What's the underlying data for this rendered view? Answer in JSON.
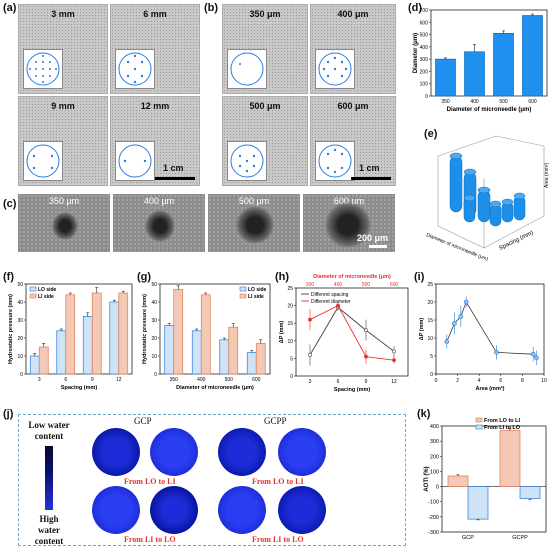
{
  "labels": {
    "a": "(a)",
    "b": "(b)",
    "c": "(c)",
    "d": "(d)",
    "e": "(e)",
    "f": "(f)",
    "g": "(g)",
    "h": "(h)",
    "i": "(i)",
    "j": "(j)",
    "k": "(k)"
  },
  "panel_a": {
    "tiles": [
      "3 mm",
      "6 mm",
      "9 mm",
      "12 mm"
    ],
    "scale": "1 cm"
  },
  "panel_b": {
    "tiles": [
      "350 μm",
      "400 μm",
      "500 μm",
      "600 μm"
    ],
    "scale": "1 cm"
  },
  "panel_c": {
    "tiles": [
      "350 μm",
      "400 μm",
      "500 μm",
      "600 μm"
    ],
    "scale": "200 μm"
  },
  "panel_j": {
    "low": "Low water content",
    "high": "High water content",
    "col_gcp": "GCP",
    "col_gcpp": "GCPP",
    "lo_to_li": "From LO to LI",
    "li_to_lo": "From LI to LO"
  },
  "colors": {
    "accent_blue": "#1f77d4",
    "orange": "#e8a487",
    "red": "#e8312f",
    "dark": "#333333",
    "light_blue": "#bcd8f0"
  },
  "chart_data": [
    {
      "id": "d",
      "type": "bar",
      "categories": [
        "350",
        "400",
        "500",
        "600"
      ],
      "values": [
        300,
        360,
        510,
        655
      ],
      "errors": [
        10,
        60,
        20,
        12
      ],
      "xlabel": "Diameter of microneedle (μm)",
      "ylabel": "Diameter (μm)",
      "ylim": [
        0,
        700
      ],
      "yticks": [
        0,
        100,
        200,
        300,
        400,
        500,
        600,
        700
      ]
    },
    {
      "id": "e",
      "type": "bar3d",
      "xlabel": "Diameter of microneedle (μm)",
      "ylabel": "Spacing (mm)",
      "zlabel": "Area (mm²)"
    },
    {
      "id": "f",
      "type": "bar",
      "categories": [
        "3",
        "6",
        "9",
        "12"
      ],
      "series": [
        {
          "name": "LO side",
          "values": [
            10,
            24,
            32,
            40
          ],
          "errors": [
            1.5,
            1,
            2,
            1
          ]
        },
        {
          "name": "LI side",
          "values": [
            15,
            44,
            45,
            45
          ],
          "errors": [
            2,
            1,
            3,
            1
          ]
        }
      ],
      "xlabel": "Spacing (mm)",
      "ylabel": "Hydrostatic pressure (mm)",
      "ylim": [
        0,
        50
      ],
      "yticks": [
        0,
        10,
        20,
        30,
        40,
        50
      ]
    },
    {
      "id": "g",
      "type": "bar",
      "categories": [
        "350",
        "400",
        "500",
        "600"
      ],
      "series": [
        {
          "name": "LO side",
          "values": [
            27,
            24,
            19,
            12
          ],
          "errors": [
            1,
            1,
            1,
            1
          ]
        },
        {
          "name": "LI side",
          "values": [
            47,
            44,
            26,
            17
          ],
          "errors": [
            2,
            1,
            2,
            2
          ]
        }
      ],
      "xlabel": "Diameter of microneedle (μm)",
      "ylabel": "Hydrostatic pressure (mm)",
      "ylim": [
        0,
        50
      ],
      "yticks": [
        0,
        10,
        20,
        30,
        40,
        50
      ]
    },
    {
      "id": "h",
      "type": "line",
      "series": [
        {
          "name": "Different spacing",
          "x": [
            3,
            6,
            9,
            12
          ],
          "values": [
            6,
            19.5,
            13,
            7
          ],
          "errors": [
            3,
            1,
            3,
            1.5
          ]
        },
        {
          "name": "Different diameter",
          "x": [
            3,
            6,
            9,
            12
          ],
          "values": [
            16,
            20,
            5.5,
            4.5
          ],
          "errors": [
            3,
            1,
            2,
            1
          ]
        }
      ],
      "xlabel": "Spacing (mm)",
      "x2label": "Diameter of microneedle (μm)",
      "ylabel": "ΔP (mm)",
      "xticks": [
        "3",
        "6",
        "9",
        "12"
      ],
      "x2ticks": [
        "300",
        "400",
        "500",
        "600"
      ],
      "ylim": [
        0,
        25
      ],
      "yticks": [
        0,
        5,
        10,
        15,
        20,
        25
      ]
    },
    {
      "id": "i",
      "type": "scatter",
      "x": [
        1,
        1.7,
        2.3,
        2.8,
        5.6,
        9,
        9.3
      ],
      "values": [
        9,
        14,
        16,
        20,
        6,
        5.5,
        4.5
      ],
      "errors": [
        2,
        3,
        3,
        1.5,
        2,
        2,
        2
      ],
      "xlabel": "Area (mm²)",
      "ylabel": "ΔP (mm)",
      "xlim": [
        0,
        10
      ],
      "xticks": [
        0,
        2,
        4,
        6,
        8,
        10
      ],
      "ylim": [
        0,
        25
      ],
      "yticks": [
        0,
        5,
        10,
        15,
        20,
        25
      ]
    },
    {
      "id": "k",
      "type": "bar",
      "categories": [
        "GCP",
        "GCPP"
      ],
      "series": [
        {
          "name": "From LO to LI",
          "values": [
            70,
            370
          ],
          "errors": [
            8,
            15
          ]
        },
        {
          "name": "From LI to LO",
          "values": [
            -215,
            -80
          ],
          "errors": [
            5,
            5
          ]
        }
      ],
      "ylabel": "AOTI (%)",
      "ylim": [
        -300,
        400
      ],
      "yticks": [
        -300,
        -200,
        -100,
        0,
        100,
        200,
        300,
        400
      ]
    }
  ]
}
